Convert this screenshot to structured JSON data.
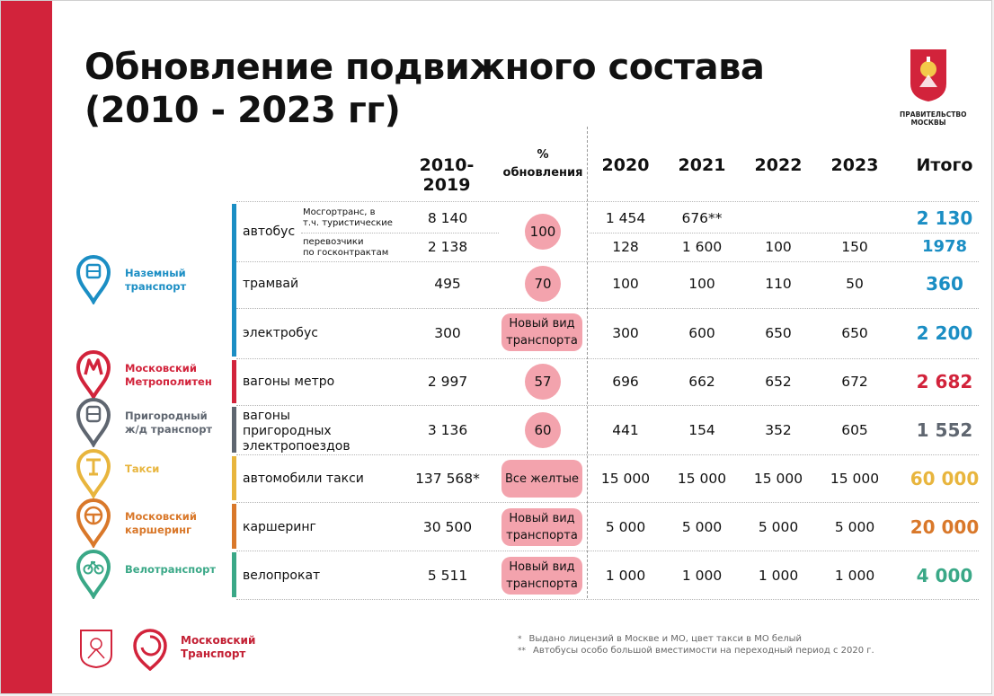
{
  "title_line1": "Обновление подвижного состава",
  "title_line2": "(2010 - 2023 гг)",
  "gov_caption_1": "ПРАВИТЕЛЬСТВО",
  "gov_caption_2": "МОСКВЫ",
  "headers": {
    "col_2010_2019": "2010- 2019",
    "pct_symbol": "%",
    "pct_word": "обновления",
    "y2020": "2020",
    "y2021": "2021",
    "y2022": "2022",
    "y2023": "2023",
    "total": "Итого"
  },
  "categories": [
    {
      "id": "ground",
      "line1": "Наземный",
      "line2": "транспорт",
      "color": "#1b8ec4",
      "icon": "bus-icon"
    },
    {
      "id": "metro",
      "line1": "Московский",
      "line2": "Метрополитен",
      "color": "#d2233b",
      "icon": "metro-m-icon"
    },
    {
      "id": "suburban",
      "line1": "Пригородный",
      "line2": "ж/д транспорт",
      "color": "#5f6670",
      "icon": "train-icon"
    },
    {
      "id": "taxi",
      "line1": "Такси",
      "line2": "",
      "color": "#e8b53d",
      "icon": "taxi-icon"
    },
    {
      "id": "carsharing",
      "line1": "Московский",
      "line2": "каршеринг",
      "color": "#d9782a",
      "icon": "steering-wheel-icon"
    },
    {
      "id": "bike",
      "line1": "Велотранспорт",
      "line2": "",
      "color": "#3aa887",
      "icon": "bicycle-icon"
    }
  ],
  "rows": {
    "bus": {
      "label": "автобус",
      "sub1": {
        "l1": "Мосгортранс, в",
        "l2": "т.ч. туристические",
        "v2019": "8 140",
        "v2020": "1 454",
        "v2021": "676**",
        "v2022": "",
        "v2023": "",
        "total": "2 130"
      },
      "sub2": {
        "l1": "перевозчики",
        "l2": "по госконтрактам",
        "v2019": "2 138",
        "v2020": "128",
        "v2021": "1 600",
        "v2022": "100",
        "v2023": "150",
        "total": "1978"
      },
      "pct": "100"
    },
    "tram": {
      "label": "трамвай",
      "v2019": "495",
      "pct": "70",
      "v2020": "100",
      "v2021": "100",
      "v2022": "110",
      "v2023": "50",
      "total": "360"
    },
    "ebus": {
      "label": "электробус",
      "v2019": "300",
      "pct1": "Новый вид",
      "pct2": "транспорта",
      "v2020": "300",
      "v2021": "600",
      "v2022": "650",
      "v2023": "650",
      "total": "2 200"
    },
    "metro": {
      "label": "вагоны метро",
      "v2019": "2 997",
      "pct": "57",
      "v2020": "696",
      "v2021": "662",
      "v2022": "652",
      "v2023": "672",
      "total": "2 682"
    },
    "suburban": {
      "l1": "вагоны",
      "l2": "пригородных",
      "l3": "электропоездов",
      "v2019": "3 136",
      "pct": "60",
      "v2020": "441",
      "v2021": "154",
      "v2022": "352",
      "v2023": "605",
      "total": "1 552"
    },
    "taxi": {
      "label": "автомобили такси",
      "v2019": "137 568*",
      "pct": "Все желтые",
      "v2020": "15 000",
      "v2021": "15 000",
      "v2022": "15 000",
      "v2023": "15 000",
      "total": "60 000"
    },
    "carsharing": {
      "label": "каршеринг",
      "v2019": "30 500",
      "pct1": "Новый вид",
      "pct2": "транспорта",
      "v2020": "5 000",
      "v2021": "5 000",
      "v2022": "5 000",
      "v2023": "5 000",
      "total": "20 000"
    },
    "bike": {
      "label": "велопрокат",
      "v2019": "5 511",
      "pct1": "Новый вид",
      "pct2": "транспорта",
      "v2020": "1 000",
      "v2021": "1 000",
      "v2022": "1 000",
      "v2023": "1 000",
      "total": "4 000"
    }
  },
  "footnotes": {
    "n1_mark": "*",
    "n1": "Выдано лицензий в Москве и МО, цвет такси в МО белый",
    "n2_mark": "**",
    "n2": "Автобусы особо большой вместимости на переходный период с 2020 г."
  },
  "brand_line1": "Московский",
  "brand_line2": "Транспорт",
  "colors": {
    "accent_red": "#d2233b",
    "pill_pink": "#f3a3ad"
  }
}
